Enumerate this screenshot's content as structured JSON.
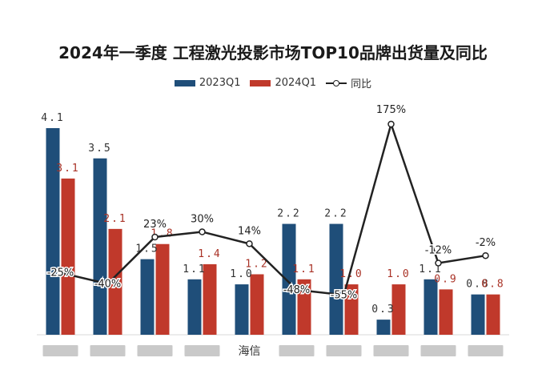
{
  "title": "2024年一季度 工程激光投影市场TOP10品牌出货量及同比",
  "legend": {
    "s1": "2023Q1",
    "s2": "2024Q1",
    "s3": "同比"
  },
  "colors": {
    "s1": "#1f4e79",
    "s2": "#c0392b",
    "line": "#222222",
    "label1": "#333333",
    "label2": "#a93226"
  },
  "chart_data": {
    "type": "bar",
    "categories": [
      "",
      "",
      "",
      "",
      "海信",
      "",
      "",
      "",
      "",
      ""
    ],
    "series": [
      {
        "name": "2023Q1",
        "type": "bar",
        "values": [
          4.1,
          3.5,
          1.5,
          1.1,
          1.0,
          2.2,
          2.2,
          0.3,
          1.1,
          0.8
        ]
      },
      {
        "name": "2024Q1",
        "type": "bar",
        "values": [
          3.1,
          2.1,
          1.8,
          1.4,
          1.2,
          1.1,
          1.0,
          1.0,
          0.9,
          0.8
        ]
      },
      {
        "name": "同比",
        "type": "line",
        "values": [
          -25,
          -40,
          23,
          30,
          14,
          -48,
          -55,
          175,
          -12,
          -2
        ],
        "labels": [
          "-25%",
          "-40%",
          "23%",
          "30%",
          "14%",
          "-48%",
          "-55%",
          "175%",
          "-12%",
          "-2%"
        ]
      }
    ],
    "value_labels_s1": [
      "4.1",
      "3.5",
      "1.5",
      "1.1",
      "1.0",
      "2.2",
      "2.2",
      "0.3",
      "1.1",
      "0.8"
    ],
    "value_labels_s2": [
      "3.1",
      "2.1",
      "1.8",
      "1.4",
      "1.2",
      "1.1",
      "1.0",
      "1.0",
      "0.9",
      "0.8"
    ],
    "ylim": [
      0,
      4.1
    ],
    "y2lim": [
      -60,
      175
    ],
    "legend_position": "top-center",
    "grid": false,
    "obscured_categories": true
  }
}
